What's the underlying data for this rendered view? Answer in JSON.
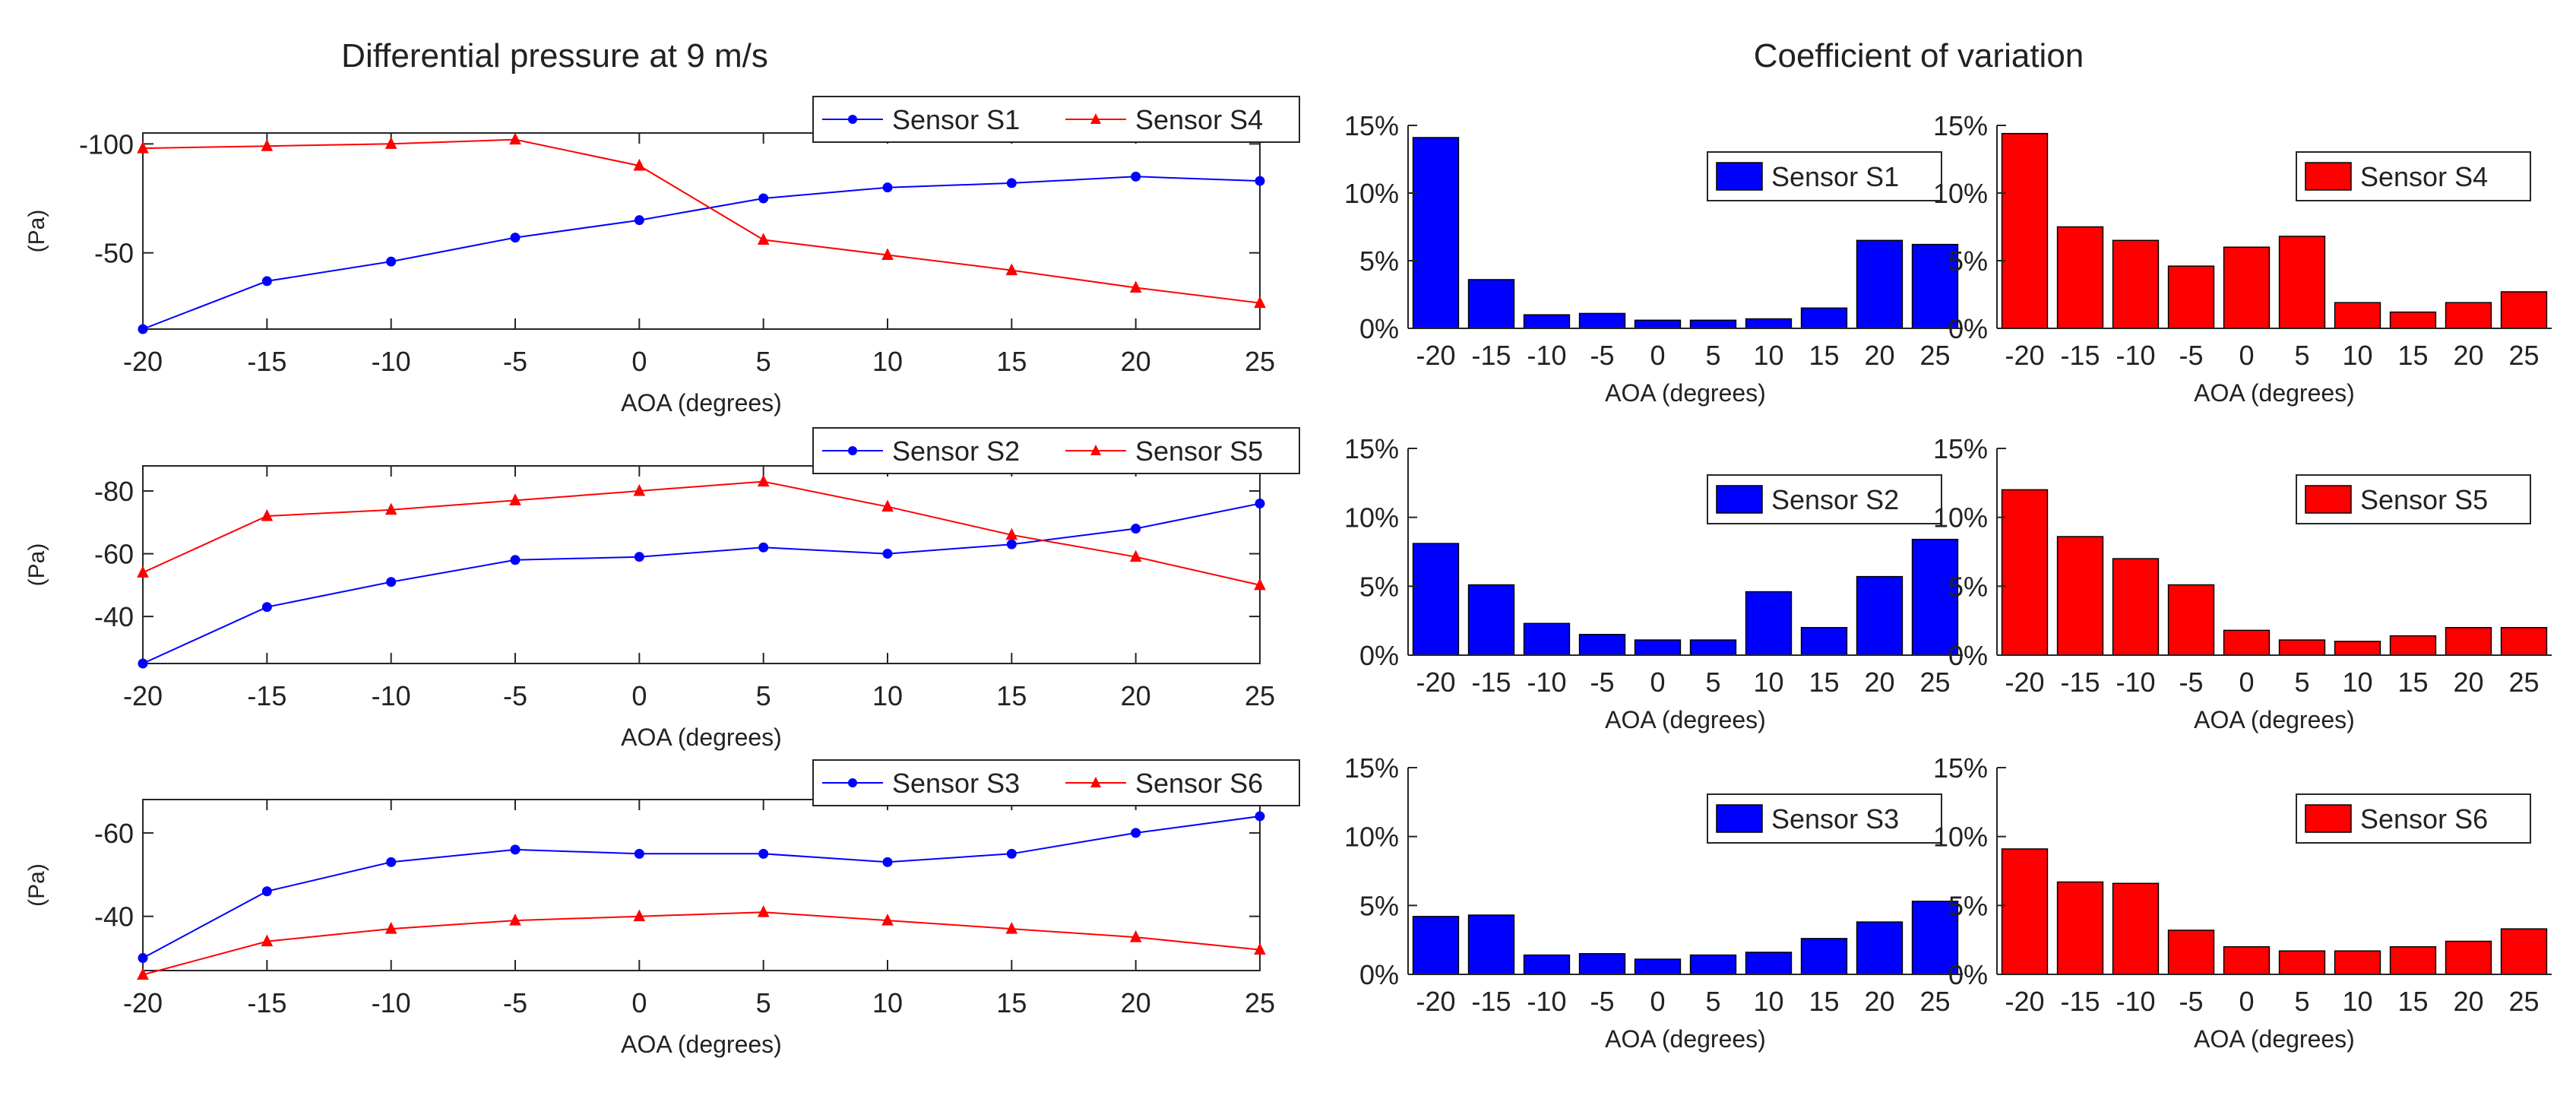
{
  "titles": {
    "left": "Differential pressure at 9 m/s",
    "right": "Coefficient of variation"
  },
  "colors": {
    "s_blue": "#0000ff",
    "s_red": "#ff0000",
    "axis": "#262626"
  },
  "chart_data": [
    {
      "id": "line1",
      "type": "line",
      "xlabel": "AOA (degrees)",
      "ylabel": "(Pa)",
      "x": [
        -20,
        -15,
        -10,
        -5,
        0,
        5,
        10,
        15,
        20,
        25
      ],
      "xlim": [
        -20,
        25
      ],
      "ylim": [
        -15,
        -105
      ],
      "yticks": [
        -100,
        -50
      ],
      "ytick_labels": [
        "-100",
        "-50"
      ],
      "xticks": [
        -20,
        -15,
        -10,
        -5,
        0,
        5,
        10,
        15,
        20,
        25
      ],
      "xtick_labels": [
        "-20",
        "-15",
        "-10",
        "-5",
        "0",
        "5",
        "10",
        "15",
        "20",
        "25"
      ],
      "series": [
        {
          "name": "Sensor S1",
          "color": "#0000ff",
          "marker": "circle",
          "values": [
            -15,
            -37,
            -46,
            -57,
            -65,
            -75,
            -80,
            -82,
            -85,
            -83
          ]
        },
        {
          "name": "Sensor S4",
          "color": "#ff0000",
          "marker": "triangle",
          "values": [
            -98,
            -99,
            -100,
            -102,
            -90,
            -56,
            -49,
            -42,
            -34,
            -27
          ]
        }
      ]
    },
    {
      "id": "line2",
      "type": "line",
      "xlabel": "AOA (degrees)",
      "ylabel": "(Pa)",
      "x": [
        -20,
        -15,
        -10,
        -5,
        0,
        5,
        10,
        15,
        20,
        25
      ],
      "xlim": [
        -20,
        25
      ],
      "ylim": [
        -25,
        -88
      ],
      "yticks": [
        -80,
        -60,
        -40
      ],
      "ytick_labels": [
        "-80",
        "-60",
        "-40"
      ],
      "xticks": [
        -20,
        -15,
        -10,
        -5,
        0,
        5,
        10,
        15,
        20,
        25
      ],
      "xtick_labels": [
        "-20",
        "-15",
        "-10",
        "-5",
        "0",
        "5",
        "10",
        "15",
        "20",
        "25"
      ],
      "series": [
        {
          "name": "Sensor S2",
          "color": "#0000ff",
          "marker": "circle",
          "values": [
            -25,
            -43,
            -51,
            -58,
            -59,
            -62,
            -60,
            -63,
            -68,
            -76
          ]
        },
        {
          "name": "Sensor S5",
          "color": "#ff0000",
          "marker": "triangle",
          "values": [
            -54,
            -72,
            -74,
            -77,
            -80,
            -83,
            -75,
            -66,
            -59,
            -50
          ]
        }
      ]
    },
    {
      "id": "line3",
      "type": "line",
      "xlabel": "AOA (degrees)",
      "ylabel": "(Pa)",
      "x": [
        -20,
        -15,
        -10,
        -5,
        0,
        5,
        10,
        15,
        20,
        25
      ],
      "xlim": [
        -20,
        25
      ],
      "ylim": [
        -27,
        -68
      ],
      "yticks": [
        -60,
        -40
      ],
      "ytick_labels": [
        "-60",
        "-40"
      ],
      "xticks": [
        -20,
        -15,
        -10,
        -5,
        0,
        5,
        10,
        15,
        20,
        25
      ],
      "xtick_labels": [
        "-20",
        "-15",
        "-10",
        "-5",
        "0",
        "5",
        "10",
        "15",
        "20",
        "25"
      ],
      "series": [
        {
          "name": "Sensor S3",
          "color": "#0000ff",
          "marker": "circle",
          "values": [
            -30,
            -46,
            -53,
            -56,
            -55,
            -55,
            -53,
            -55,
            -60,
            -64
          ]
        },
        {
          "name": "Sensor S6",
          "color": "#ff0000",
          "marker": "triangle",
          "values": [
            -26,
            -34,
            -37,
            -39,
            -40,
            -41,
            -39,
            -37,
            -35,
            -32
          ]
        }
      ]
    },
    {
      "id": "bar1",
      "type": "bar",
      "xlabel": "AOA (degrees)",
      "categories": [
        "-20",
        "-15",
        "-10",
        "-5",
        "0",
        "5",
        "10",
        "15",
        "20",
        "25"
      ],
      "ylim": [
        0,
        15
      ],
      "yticks": [
        0,
        5,
        10,
        15
      ],
      "ytick_labels": [
        "0%",
        "5%",
        "10%",
        "15%"
      ],
      "series": [
        {
          "name": "Sensor S1",
          "color": "#0000ff",
          "values": [
            14.1,
            3.6,
            1.0,
            1.1,
            0.6,
            0.6,
            0.7,
            1.5,
            6.5,
            6.2
          ]
        }
      ]
    },
    {
      "id": "bar2",
      "type": "bar",
      "xlabel": "AOA (degrees)",
      "categories": [
        "-20",
        "-15",
        "-10",
        "-5",
        "0",
        "5",
        "10",
        "15",
        "20",
        "25"
      ],
      "ylim": [
        0,
        15
      ],
      "yticks": [
        0,
        5,
        10,
        15
      ],
      "ytick_labels": [
        "0%",
        "5%",
        "10%",
        "15%"
      ],
      "series": [
        {
          "name": "Sensor S4",
          "color": "#ff0000",
          "values": [
            14.4,
            7.5,
            6.5,
            4.6,
            6.0,
            6.8,
            1.9,
            1.2,
            1.9,
            2.7
          ]
        }
      ]
    },
    {
      "id": "bar3",
      "type": "bar",
      "xlabel": "AOA (degrees)",
      "categories": [
        "-20",
        "-15",
        "-10",
        "-5",
        "0",
        "5",
        "10",
        "15",
        "20",
        "25"
      ],
      "ylim": [
        0,
        15
      ],
      "yticks": [
        0,
        5,
        10,
        15
      ],
      "ytick_labels": [
        "0%",
        "5%",
        "10%",
        "15%"
      ],
      "series": [
        {
          "name": "Sensor S2",
          "color": "#0000ff",
          "values": [
            8.1,
            5.1,
            2.3,
            1.5,
            1.1,
            1.1,
            4.6,
            2.0,
            5.7,
            8.4
          ]
        }
      ]
    },
    {
      "id": "bar4",
      "type": "bar",
      "xlabel": "AOA (degrees)",
      "categories": [
        "-20",
        "-15",
        "-10",
        "-5",
        "0",
        "5",
        "10",
        "15",
        "20",
        "25"
      ],
      "ylim": [
        0,
        15
      ],
      "yticks": [
        0,
        5,
        10,
        15
      ],
      "ytick_labels": [
        "0%",
        "5%",
        "10%",
        "15%"
      ],
      "series": [
        {
          "name": "Sensor S5",
          "color": "#ff0000",
          "values": [
            12.0,
            8.6,
            7.0,
            5.1,
            1.8,
            1.1,
            1.0,
            1.4,
            2.0,
            2.0
          ]
        }
      ]
    },
    {
      "id": "bar5",
      "type": "bar",
      "xlabel": "AOA (degrees)",
      "categories": [
        "-20",
        "-15",
        "-10",
        "-5",
        "0",
        "5",
        "10",
        "15",
        "20",
        "25"
      ],
      "ylim": [
        0,
        15
      ],
      "yticks": [
        0,
        5,
        10,
        15
      ],
      "ytick_labels": [
        "0%",
        "5%",
        "10%",
        "15%"
      ],
      "series": [
        {
          "name": "Sensor S3",
          "color": "#0000ff",
          "values": [
            4.2,
            4.3,
            1.4,
            1.5,
            1.1,
            1.4,
            1.6,
            2.6,
            3.8,
            5.3
          ]
        }
      ]
    },
    {
      "id": "bar6",
      "type": "bar",
      "xlabel": "AOA (degrees)",
      "categories": [
        "-20",
        "-15",
        "-10",
        "-5",
        "0",
        "5",
        "10",
        "15",
        "20",
        "25"
      ],
      "ylim": [
        0,
        15
      ],
      "yticks": [
        0,
        5,
        10,
        15
      ],
      "ytick_labels": [
        "0%",
        "5%",
        "10%",
        "15%"
      ],
      "series": [
        {
          "name": "Sensor S6",
          "color": "#ff0000",
          "values": [
            9.1,
            6.7,
            6.6,
            3.2,
            2.0,
            1.7,
            1.7,
            2.0,
            2.4,
            3.3
          ]
        }
      ]
    }
  ]
}
